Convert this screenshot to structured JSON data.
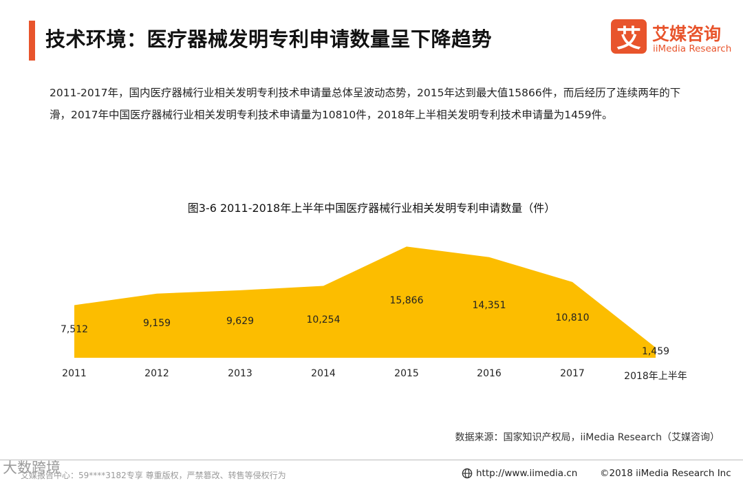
{
  "header": {
    "title": "技术环境：医疗器械发明专利申请数量呈下降趋势",
    "accent_color": "#e8542c"
  },
  "logo": {
    "mark": "艾",
    "name_cn": "艾媒咨询",
    "name_en": "iiMedia Research"
  },
  "summary": "2011-2017年，国内医疗器械行业相关发明专利技术申请量总体呈波动态势，2015年达到最大值15866件，而后经历了连续两年的下滑，2017年中国医疗器械行业相关发明专利技术申请量为10810件，2018年上半相关发明专利技术申请量为1459件。",
  "chart_data": {
    "type": "area",
    "title": "图3-6 2011-2018年上半年中国医疗器械行业相关发明专利申请数量（件）",
    "categories": [
      "2011",
      "2012",
      "2013",
      "2014",
      "2015",
      "2016",
      "2017",
      "2018年上半年"
    ],
    "values": [
      7512,
      9159,
      9629,
      10254,
      15866,
      14351,
      10810,
      1459
    ],
    "value_labels": [
      "7,512",
      "9,159",
      "9,629",
      "10,254",
      "15,866",
      "14,351",
      "10,810",
      "1,459"
    ],
    "fill_color": "#fcbd00",
    "ylim": [
      0,
      16000
    ],
    "grid": false,
    "legend": "none"
  },
  "source": "数据来源：国家知识产权局，iiMedia Research（艾媒咨询）",
  "footer": {
    "watermark": "大数跨境",
    "copy_note": "艾媒报告中心：59****3182专享 尊重版权，严禁篡改、转售等侵权行为",
    "website": "http://www.iimedia.cn",
    "copyright": "©2018  iiMedia Research  Inc"
  }
}
